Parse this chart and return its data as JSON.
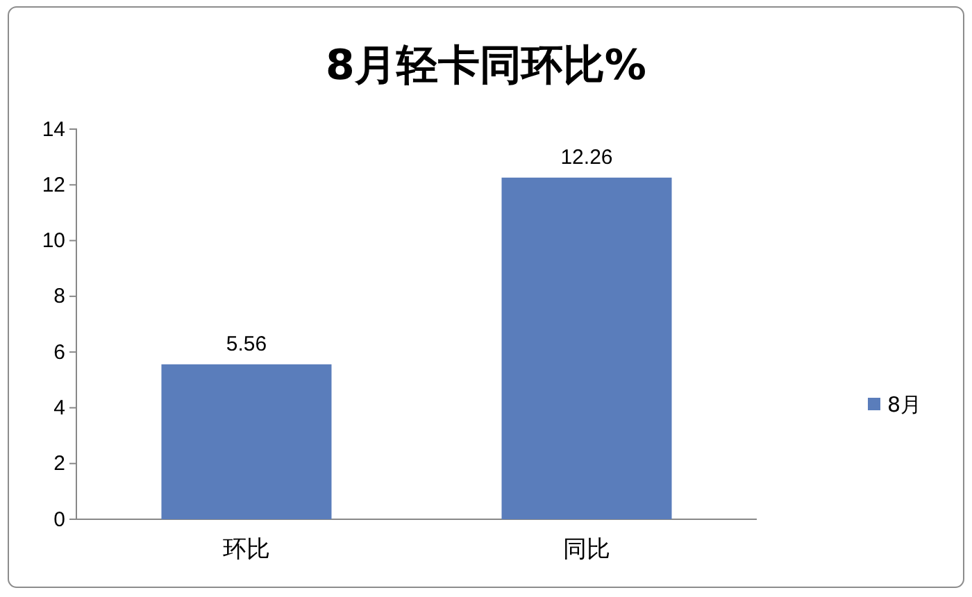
{
  "chart_data": {
    "type": "bar",
    "title": "8月轻卡同环比%",
    "categories": [
      "环比",
      "同比"
    ],
    "series": [
      {
        "name": "8月",
        "color": "#5a7dbb",
        "values": [
          5.56,
          12.26
        ]
      }
    ],
    "ylim": [
      0,
      14
    ],
    "yticks": [
      0,
      2,
      4,
      6,
      8,
      10,
      12,
      14
    ],
    "grid": false,
    "legend": "right",
    "data_labels": true
  }
}
